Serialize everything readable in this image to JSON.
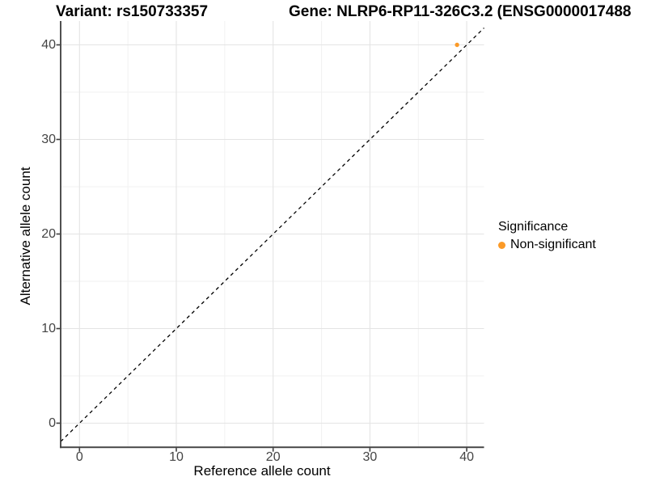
{
  "chart_data": {
    "type": "scatter",
    "titles": {
      "left": "Variant: rs150733357",
      "right": "Gene: NLRP6-RP11-326C3.2 (ENSG0000017488"
    },
    "xlabel": "Reference allele count",
    "ylabel": "Alternative allele count",
    "xlim": [
      -2,
      42
    ],
    "ylim": [
      -2.7,
      42.2
    ],
    "x_ticks": [
      0,
      10,
      20,
      30,
      40
    ],
    "y_ticks": [
      0,
      10,
      20,
      30,
      40
    ],
    "x_minor_gridlines": [
      5,
      15,
      25,
      35
    ],
    "y_minor_gridlines": [
      5,
      15,
      25,
      35
    ],
    "grid": "major+minor",
    "series": [
      {
        "name": "Non-significant",
        "color": "#FB9A28",
        "points": [
          {
            "x": 39,
            "y": 40
          }
        ]
      }
    ],
    "reference_line": {
      "equation": "y = x",
      "style": "dashed",
      "color": "#000000"
    },
    "legend": {
      "title": "Significance",
      "position": "right",
      "items": [
        {
          "label": "Non-significant",
          "color": "#FB9A28",
          "marker": "circle"
        }
      ]
    },
    "colors": {
      "background": "#FFFFFF",
      "axis_line": "#3C3C3C",
      "tick_label": "#444444",
      "grid_major": "#E4E4E4",
      "grid_minor": "#F1F1F1",
      "point": "#FB9A28"
    }
  }
}
